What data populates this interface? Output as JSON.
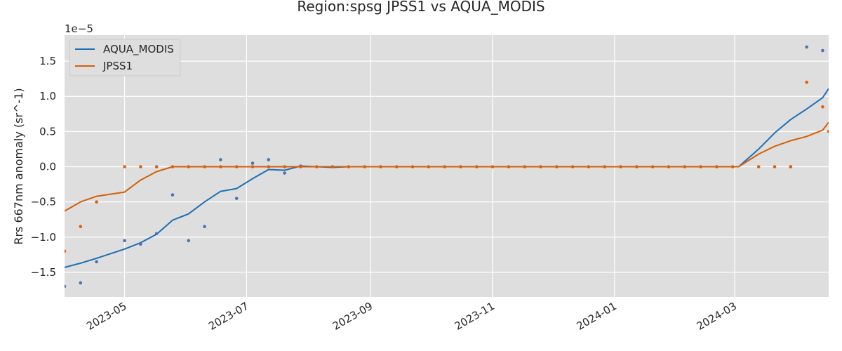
{
  "chart_data": {
    "type": "line",
    "title": "Region:spsg JPSS1 vs AQUA_MODIS",
    "xlabel": "",
    "ylabel": "Rrs 667nm anomaly (sr^-1)",
    "y_offset_text": "1e−5",
    "x_axis_type": "date",
    "xlim": [
      "2023-04-01",
      "2024-04-17"
    ],
    "ylim": [
      -1.85,
      1.87
    ],
    "y_ticks": [
      -1.5,
      -1.0,
      -0.5,
      0.0,
      0.5,
      1.0,
      1.5
    ],
    "y_tick_labels": [
      "−1.5",
      "−1.0",
      "−0.5",
      "0.0",
      "0.5",
      "1.0",
      "1.5"
    ],
    "x_ticks": [
      "2023-05-01",
      "2023-07-01",
      "2023-09-01",
      "2023-11-01",
      "2024-01-01",
      "2024-03-01"
    ],
    "x_tick_labels": [
      "2023-05",
      "2023-07",
      "2023-09",
      "2023-11",
      "2024-01",
      "2024-03"
    ],
    "grid": true,
    "legend_position": "top-left",
    "colors": {
      "AQUA_MODIS": "#1f6fb4",
      "JPSS1": "#d35f0a",
      "aqua_points": "#4c72b0",
      "jpss_points": "#dd5f0a",
      "background": "#dedede",
      "grid": "#ffffff"
    },
    "series": [
      {
        "name": "AQUA_MODIS",
        "kind": "line",
        "x": [
          "2023-04-01",
          "2023-04-09",
          "2023-04-17",
          "2023-05-01",
          "2023-05-09",
          "2023-05-17",
          "2023-05-25",
          "2023-06-02",
          "2023-06-10",
          "2023-06-18",
          "2023-06-26",
          "2023-07-04",
          "2023-07-12",
          "2023-07-20",
          "2023-07-28",
          "2023-08-13",
          "2023-08-21",
          "2024-03-03",
          "2024-03-13",
          "2024-03-21",
          "2024-03-29",
          "2024-04-06",
          "2024-04-14",
          "2024-04-17"
        ],
        "y": [
          -1.43,
          -1.37,
          -1.3,
          -1.17,
          -1.08,
          -0.96,
          -0.76,
          -0.67,
          -0.5,
          -0.35,
          -0.31,
          -0.17,
          -0.04,
          -0.05,
          0.01,
          -0.01,
          0.0,
          0.0,
          0.25,
          0.48,
          0.67,
          0.82,
          0.98,
          1.11
        ]
      },
      {
        "name": "JPSS1",
        "kind": "line",
        "x": [
          "2023-04-01",
          "2023-04-09",
          "2023-04-17",
          "2023-05-01",
          "2023-05-09",
          "2023-05-17",
          "2023-05-25",
          "2023-06-02",
          "2023-06-26",
          "2023-07-20",
          "2023-07-28",
          "2023-08-21",
          "2024-03-03",
          "2024-03-13",
          "2024-03-21",
          "2024-03-29",
          "2024-04-06",
          "2024-04-14",
          "2024-04-17"
        ],
        "y": [
          -0.63,
          -0.5,
          -0.42,
          -0.36,
          -0.19,
          -0.07,
          0.0,
          0.0,
          0.0,
          0.0,
          0.0,
          0.0,
          0.0,
          0.18,
          0.29,
          0.37,
          0.43,
          0.52,
          0.63
        ]
      },
      {
        "name": "AQUA_MODIS points",
        "kind": "scatter",
        "x": [
          "2023-04-01",
          "2023-04-09",
          "2023-04-17",
          "2023-05-01",
          "2023-05-09",
          "2023-05-17",
          "2023-05-25",
          "2023-06-02",
          "2023-06-10",
          "2023-06-18",
          "2023-06-26",
          "2023-07-04",
          "2023-07-12",
          "2023-07-20",
          "2023-07-28",
          "2024-03-29",
          "2024-04-06",
          "2024-04-14"
        ],
        "y": [
          -1.7,
          -1.65,
          -1.35,
          -1.05,
          -1.1,
          -0.95,
          -0.4,
          -1.05,
          -0.85,
          0.1,
          -0.45,
          0.05,
          0.1,
          -0.09,
          0.01,
          0.0,
          1.7,
          1.65
        ]
      },
      {
        "name": "JPSS1 points",
        "kind": "scatter",
        "x": [
          "2023-04-01",
          "2023-04-09",
          "2023-04-17",
          "2023-05-01",
          "2023-05-09",
          "2023-05-17",
          "2023-05-25",
          "2023-06-02",
          "2023-06-10",
          "2023-06-18",
          "2023-06-26",
          "2023-07-04",
          "2023-07-12",
          "2023-07-20",
          "2023-07-28",
          "2023-08-05",
          "2023-08-13",
          "2023-08-21",
          "2023-08-29",
          "2023-09-06",
          "2023-09-14",
          "2023-09-22",
          "2023-09-30",
          "2023-10-08",
          "2023-10-16",
          "2023-10-24",
          "2023-11-01",
          "2023-11-09",
          "2023-11-17",
          "2023-11-25",
          "2023-12-03",
          "2023-12-11",
          "2023-12-19",
          "2023-12-27",
          "2024-01-04",
          "2024-01-12",
          "2024-01-20",
          "2024-01-28",
          "2024-02-05",
          "2024-02-13",
          "2024-02-21",
          "2024-02-29",
          "2024-03-13",
          "2024-03-21",
          "2024-03-29",
          "2024-04-06",
          "2024-04-14",
          "2024-04-17"
        ],
        "y": [
          -1.2,
          -0.85,
          -0.5,
          0,
          0,
          0,
          0,
          0,
          0,
          0,
          0,
          0,
          0,
          0,
          0,
          0,
          0,
          0,
          0,
          0,
          0,
          0,
          0,
          0,
          0,
          0,
          0,
          0,
          0,
          0,
          0,
          0,
          0,
          0,
          0,
          0,
          0,
          0,
          0,
          0,
          0,
          0,
          0,
          0,
          0,
          1.2,
          0.85,
          0.5
        ]
      }
    ]
  }
}
